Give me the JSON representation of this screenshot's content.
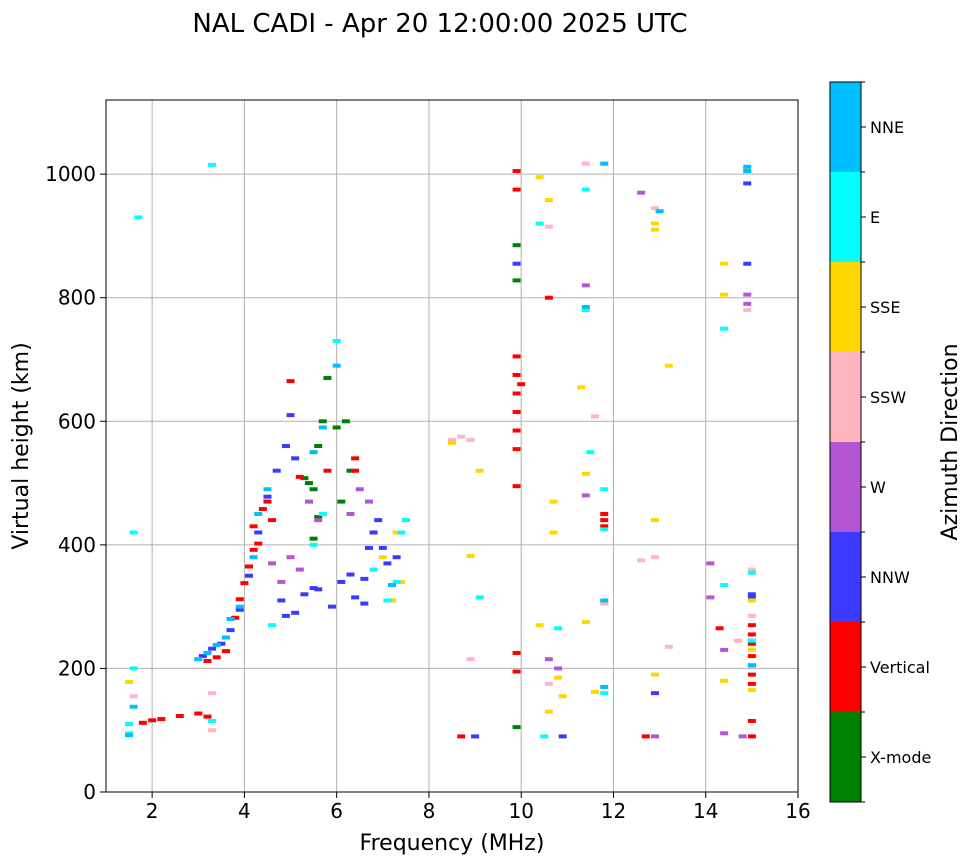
{
  "chart_data": {
    "type": "scatter",
    "title": "NAL CADI - Apr 20 12:00:00 2025 UTC",
    "xlabel": "Frequency (MHz)",
    "ylabel": "Virtual height (km)",
    "xlim": [
      1,
      16
    ],
    "ylim": [
      0,
      1120
    ],
    "xticks": [
      2,
      4,
      6,
      8,
      10,
      12,
      14,
      16
    ],
    "yticks": [
      0,
      200,
      400,
      600,
      800,
      1000
    ],
    "grid": true,
    "colorbar": {
      "label": "Azimuth Direction",
      "categories": [
        {
          "name": "X-mode",
          "color": "#008000"
        },
        {
          "name": "Vertical",
          "color": "#ff0000"
        },
        {
          "name": "NNW",
          "color": "#3b3bff"
        },
        {
          "name": "W",
          "color": "#b455d4"
        },
        {
          "name": "SSW",
          "color": "#ffb6c1"
        },
        {
          "name": "SSE",
          "color": "#ffd700"
        },
        {
          "name": "E",
          "color": "#00ffff"
        },
        {
          "name": "NNE",
          "color": "#00bfff"
        }
      ]
    },
    "series": [
      {
        "name": "X-mode",
        "points": [
          [
            5.3,
            508
          ],
          [
            5.4,
            500
          ],
          [
            5.5,
            490
          ],
          [
            5.6,
            560
          ],
          [
            5.7,
            600
          ],
          [
            5.8,
            670
          ],
          [
            6.0,
            590
          ],
          [
            6.2,
            600
          ],
          [
            6.3,
            520
          ],
          [
            9.9,
            885
          ],
          [
            9.9,
            828
          ],
          [
            9.9,
            105
          ],
          [
            5.6,
            445
          ],
          [
            5.5,
            410
          ],
          [
            6.1,
            470
          ]
        ]
      },
      {
        "name": "Vertical",
        "points": [
          [
            1.8,
            112
          ],
          [
            2.0,
            116
          ],
          [
            2.2,
            118
          ],
          [
            2.6,
            123
          ],
          [
            3.0,
            127
          ],
          [
            3.2,
            122
          ],
          [
            3.2,
            212
          ],
          [
            3.4,
            218
          ],
          [
            3.6,
            228
          ],
          [
            3.8,
            282
          ],
          [
            3.9,
            312
          ],
          [
            4.0,
            338
          ],
          [
            4.1,
            365
          ],
          [
            4.2,
            392
          ],
          [
            4.2,
            430
          ],
          [
            4.3,
            402
          ],
          [
            4.4,
            458
          ],
          [
            4.5,
            470
          ],
          [
            4.6,
            440
          ],
          [
            5.0,
            665
          ],
          [
            5.2,
            510
          ],
          [
            5.8,
            520
          ],
          [
            6.4,
            520
          ],
          [
            6.4,
            540
          ],
          [
            9.9,
            1005
          ],
          [
            9.9,
            975
          ],
          [
            9.9,
            705
          ],
          [
            9.9,
            675
          ],
          [
            9.9,
            645
          ],
          [
            10.0,
            660
          ],
          [
            9.9,
            615
          ],
          [
            9.9,
            585
          ],
          [
            9.9,
            555
          ],
          [
            9.9,
            495
          ],
          [
            9.9,
            225
          ],
          [
            9.9,
            195
          ],
          [
            10.6,
            800
          ],
          [
            11.8,
            450
          ],
          [
            11.8,
            440
          ],
          [
            11.8,
            430
          ],
          [
            14.3,
            265
          ],
          [
            15.0,
            270
          ],
          [
            15.0,
            255
          ],
          [
            15.0,
            240
          ],
          [
            15.0,
            220
          ],
          [
            15.0,
            205
          ],
          [
            15.0,
            190
          ],
          [
            15.0,
            175
          ],
          [
            15.0,
            115
          ],
          [
            15.0,
            90
          ],
          [
            12.7,
            90
          ],
          [
            8.7,
            90
          ]
        ]
      },
      {
        "name": "NNW",
        "points": [
          [
            3.1,
            220
          ],
          [
            3.3,
            232
          ],
          [
            3.5,
            240
          ],
          [
            3.7,
            262
          ],
          [
            3.9,
            295
          ],
          [
            4.1,
            350
          ],
          [
            4.3,
            420
          ],
          [
            4.5,
            478
          ],
          [
            4.8,
            310
          ],
          [
            4.9,
            285
          ],
          [
            5.1,
            290
          ],
          [
            5.3,
            320
          ],
          [
            5.5,
            330
          ],
          [
            5.6,
            328
          ],
          [
            5.9,
            300
          ],
          [
            6.1,
            340
          ],
          [
            6.3,
            352
          ],
          [
            6.4,
            315
          ],
          [
            6.6,
            345
          ],
          [
            6.7,
            395
          ],
          [
            6.8,
            420
          ],
          [
            6.9,
            440
          ],
          [
            7.0,
            395
          ],
          [
            7.1,
            370
          ],
          [
            7.3,
            380
          ],
          [
            6.6,
            305
          ],
          [
            4.9,
            560
          ],
          [
            5.0,
            610
          ],
          [
            5.1,
            540
          ],
          [
            4.7,
            520
          ],
          [
            9.9,
            855
          ],
          [
            10.9,
            90
          ],
          [
            12.9,
            160
          ],
          [
            14.9,
            855
          ],
          [
            14.9,
            985
          ],
          [
            15.0,
            315
          ],
          [
            15.0,
            320
          ],
          [
            9.0,
            90
          ]
        ]
      },
      {
        "name": "W",
        "points": [
          [
            4.6,
            370
          ],
          [
            4.8,
            340
          ],
          [
            5.0,
            380
          ],
          [
            5.2,
            360
          ],
          [
            5.4,
            470
          ],
          [
            5.6,
            440
          ],
          [
            6.3,
            450
          ],
          [
            6.5,
            490
          ],
          [
            6.7,
            470
          ],
          [
            10.6,
            215
          ],
          [
            10.8,
            200
          ],
          [
            11.4,
            480
          ],
          [
            11.4,
            820
          ],
          [
            12.6,
            970
          ],
          [
            12.9,
            90
          ],
          [
            14.1,
            315
          ],
          [
            14.1,
            370
          ],
          [
            14.4,
            230
          ],
          [
            14.4,
            95
          ],
          [
            14.8,
            90
          ],
          [
            14.9,
            790
          ],
          [
            14.9,
            805
          ]
        ]
      },
      {
        "name": "SSW",
        "points": [
          [
            1.6,
            155
          ],
          [
            3.3,
            160
          ],
          [
            3.3,
            100
          ],
          [
            8.5,
            570
          ],
          [
            8.7,
            575
          ],
          [
            8.9,
            570
          ],
          [
            8.9,
            215
          ],
          [
            10.6,
            915
          ],
          [
            10.6,
            175
          ],
          [
            11.4,
            1017
          ],
          [
            11.6,
            608
          ],
          [
            11.8,
            305
          ],
          [
            12.6,
            375
          ],
          [
            12.9,
            380
          ],
          [
            13.2,
            235
          ],
          [
            14.7,
            245
          ],
          [
            15.0,
            360
          ],
          [
            15.0,
            285
          ],
          [
            12.9,
            945
          ],
          [
            14.9,
            780
          ]
        ]
      },
      {
        "name": "SSE",
        "points": [
          [
            1.5,
            178
          ],
          [
            8.5,
            565
          ],
          [
            8.9,
            382
          ],
          [
            9.1,
            520
          ],
          [
            10.4,
            270
          ],
          [
            10.4,
            995
          ],
          [
            10.6,
            958
          ],
          [
            10.6,
            130
          ],
          [
            10.7,
            470
          ],
          [
            10.7,
            420
          ],
          [
            10.8,
            185
          ],
          [
            10.9,
            155
          ],
          [
            11.3,
            655
          ],
          [
            11.4,
            515
          ],
          [
            11.4,
            275
          ],
          [
            11.6,
            162
          ],
          [
            12.9,
            440
          ],
          [
            12.9,
            920
          ],
          [
            12.9,
            910
          ],
          [
            12.9,
            190
          ],
          [
            13.2,
            690
          ],
          [
            14.4,
            180
          ],
          [
            14.4,
            855
          ],
          [
            14.4,
            805
          ],
          [
            14.9,
            1010
          ],
          [
            15.0,
            165
          ],
          [
            15.0,
            230
          ],
          [
            15.0,
            310
          ],
          [
            7.4,
            340
          ],
          [
            7.5,
            440
          ],
          [
            7.3,
            420
          ],
          [
            7.0,
            380
          ],
          [
            7.2,
            310
          ]
        ]
      },
      {
        "name": "E",
        "points": [
          [
            1.5,
            95
          ],
          [
            1.5,
            110
          ],
          [
            1.6,
            200
          ],
          [
            1.6,
            420
          ],
          [
            1.7,
            930
          ],
          [
            3.3,
            1015
          ],
          [
            3.3,
            115
          ],
          [
            4.6,
            270
          ],
          [
            5.5,
            400
          ],
          [
            5.7,
            450
          ],
          [
            6.0,
            730
          ],
          [
            6.8,
            360
          ],
          [
            7.1,
            310
          ],
          [
            7.3,
            340
          ],
          [
            7.4,
            420
          ],
          [
            7.5,
            440
          ],
          [
            9.1,
            315
          ],
          [
            10.4,
            920
          ],
          [
            10.5,
            90
          ],
          [
            10.8,
            265
          ],
          [
            11.4,
            975
          ],
          [
            11.4,
            780
          ],
          [
            11.5,
            550
          ],
          [
            11.8,
            425
          ],
          [
            11.8,
            160
          ],
          [
            11.8,
            490
          ],
          [
            14.4,
            335
          ],
          [
            14.4,
            750
          ],
          [
            15.0,
            355
          ],
          [
            15.0,
            245
          ],
          [
            14.9,
            1005
          ]
        ]
      },
      {
        "name": "NNE",
        "points": [
          [
            1.5,
            92
          ],
          [
            1.6,
            138
          ],
          [
            3.0,
            215
          ],
          [
            3.2,
            225
          ],
          [
            3.4,
            238
          ],
          [
            3.6,
            250
          ],
          [
            3.7,
            280
          ],
          [
            3.9,
            300
          ],
          [
            4.2,
            380
          ],
          [
            4.3,
            450
          ],
          [
            4.5,
            490
          ],
          [
            5.5,
            550
          ],
          [
            5.7,
            590
          ],
          [
            6.0,
            690
          ],
          [
            7.2,
            335
          ],
          [
            11.8,
            1017
          ],
          [
            11.8,
            170
          ],
          [
            14.9,
            1005
          ],
          [
            15.0,
            205
          ],
          [
            11.4,
            785
          ],
          [
            11.8,
            310
          ],
          [
            13.0,
            940
          ],
          [
            14.9,
            1012
          ]
        ]
      }
    ]
  }
}
